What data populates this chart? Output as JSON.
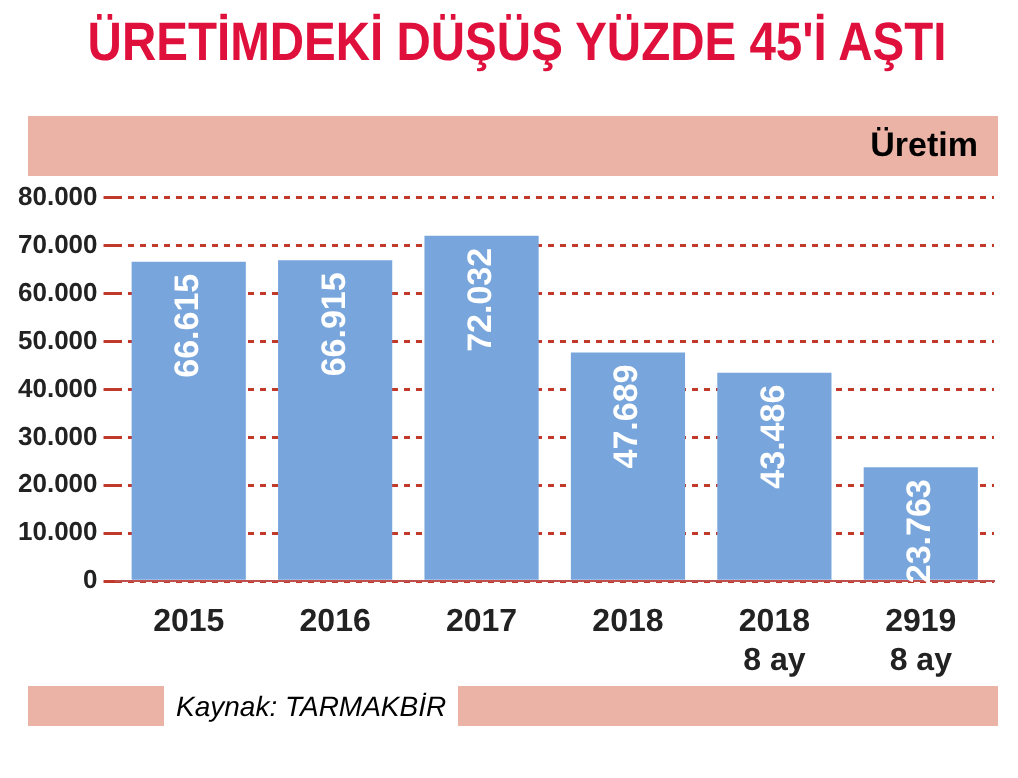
{
  "chart_data": {
    "type": "bar",
    "title": "ÜRETİMDEKİ DÜŞÜŞ YÜZDE 45'İ AŞTI",
    "subtitle": "Üretim",
    "categories": [
      "2015",
      "2016",
      "2017",
      "2018",
      "2018\n8 ay",
      "2919\n8 ay"
    ],
    "values": [
      66615,
      66915,
      72032,
      47689,
      43486,
      23763
    ],
    "value_labels": [
      "66.615",
      "66.915",
      "72.032",
      "47.689",
      "43.486",
      "23.763"
    ],
    "color": "#78a6dc",
    "ylim": [
      0,
      80000
    ],
    "yticks": [
      {
        "value": 0,
        "label": "0"
      },
      {
        "value": 10000,
        "label": "10.000"
      },
      {
        "value": 20000,
        "label": "20.000"
      },
      {
        "value": 30000,
        "label": "30.000"
      },
      {
        "value": 40000,
        "label": "40.000"
      },
      {
        "value": 50000,
        "label": "50.000"
      },
      {
        "value": 60000,
        "label": "60.000"
      },
      {
        "value": 70000,
        "label": "70.000"
      },
      {
        "value": 80000,
        "label": "80.000"
      }
    ],
    "grid": "y",
    "annotations": [
      "Kaynak: TARMAKBİR"
    ]
  }
}
